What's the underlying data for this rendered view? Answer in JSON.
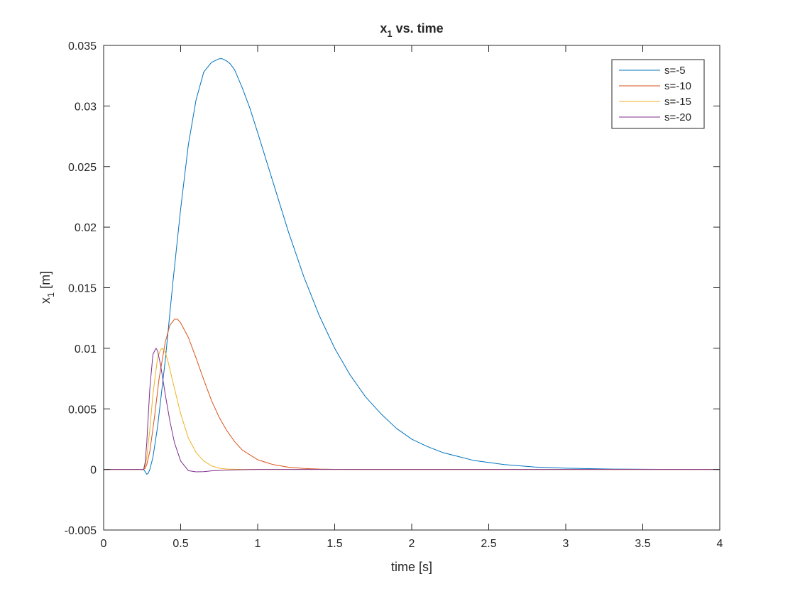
{
  "chart_data": {
    "type": "line",
    "title": "x",
    "title_subscript": "1",
    "title_suffix": " vs. time",
    "xlabel": "time [s]",
    "ylabel": "x",
    "ylabel_subscript": "1",
    "ylabel_suffix": " [m]",
    "xlim": [
      0,
      4
    ],
    "ylim": [
      -0.005,
      0.035
    ],
    "xticks": [
      0,
      0.5,
      1,
      1.5,
      2,
      2.5,
      3,
      3.5,
      4
    ],
    "xtick_labels": [
      "0",
      "0.5",
      "1",
      "1.5",
      "2",
      "2.5",
      "3",
      "3.5",
      "4"
    ],
    "yticks": [
      -0.005,
      0,
      0.005,
      0.01,
      0.015,
      0.02,
      0.025,
      0.03,
      0.035
    ],
    "ytick_labels": [
      "-0.005",
      "0",
      "0.005",
      "0.01",
      "0.015",
      "0.02",
      "0.025",
      "0.03",
      "0.035"
    ],
    "grid": false,
    "legend_position": "top-right",
    "series": [
      {
        "name": "s=-5",
        "color": "#0072BD",
        "x": [
          0,
          0.26,
          0.27,
          0.28,
          0.29,
          0.3,
          0.32,
          0.35,
          0.4,
          0.45,
          0.5,
          0.55,
          0.6,
          0.65,
          0.7,
          0.75,
          0.77,
          0.8,
          0.82,
          0.85,
          0.9,
          0.95,
          1.0,
          1.1,
          1.2,
          1.3,
          1.4,
          1.5,
          1.6,
          1.7,
          1.8,
          1.9,
          2.0,
          2.1,
          2.2,
          2.4,
          2.6,
          2.8,
          3.0,
          3.3,
          3.6,
          4.0
        ],
        "y": [
          0,
          0,
          -0.0002,
          -0.0004,
          -0.0003,
          0,
          0.001,
          0.0035,
          0.009,
          0.0155,
          0.0215,
          0.0268,
          0.0305,
          0.0328,
          0.0336,
          0.0339,
          0.0339,
          0.0337,
          0.0335,
          0.033,
          0.0315,
          0.0298,
          0.0278,
          0.0237,
          0.0196,
          0.0159,
          0.0127,
          0.01,
          0.0078,
          0.006,
          0.0046,
          0.0034,
          0.0025,
          0.0019,
          0.0014,
          0.00075,
          0.0004,
          0.0002,
          0.0001,
          3e-05,
          1e-05,
          0
        ]
      },
      {
        "name": "s=-10",
        "color": "#D95319",
        "x": [
          0,
          0.26,
          0.27,
          0.28,
          0.3,
          0.33,
          0.36,
          0.4,
          0.43,
          0.46,
          0.48,
          0.5,
          0.55,
          0.6,
          0.65,
          0.7,
          0.75,
          0.8,
          0.85,
          0.9,
          1.0,
          1.1,
          1.2,
          1.3,
          1.4,
          1.5,
          1.7,
          2.0,
          4.0
        ],
        "y": [
          0,
          0,
          0.0001,
          0.0004,
          0.0015,
          0.0043,
          0.0075,
          0.0105,
          0.0119,
          0.0124,
          0.0124,
          0.0121,
          0.0109,
          0.0092,
          0.0074,
          0.0057,
          0.0043,
          0.0032,
          0.0023,
          0.0016,
          0.0008,
          0.0004,
          0.00018,
          8e-05,
          3e-05,
          1e-05,
          0,
          0,
          0
        ]
      },
      {
        "name": "s=-15",
        "color": "#EDB120",
        "x": [
          0,
          0.26,
          0.27,
          0.28,
          0.3,
          0.32,
          0.35,
          0.37,
          0.38,
          0.4,
          0.42,
          0.45,
          0.5,
          0.55,
          0.6,
          0.65,
          0.7,
          0.75,
          0.8,
          0.9,
          1.0,
          4.0
        ],
        "y": [
          0,
          0,
          0.0003,
          0.001,
          0.0033,
          0.0062,
          0.0092,
          0.0099,
          0.01,
          0.0097,
          0.0088,
          0.0072,
          0.0046,
          0.0026,
          0.0014,
          0.0007,
          0.0003,
          0.0001,
          3e-05,
          0,
          0,
          0
        ]
      },
      {
        "name": "s=-20",
        "color": "#7E2F8E",
        "x": [
          0,
          0.26,
          0.27,
          0.28,
          0.29,
          0.3,
          0.32,
          0.34,
          0.35,
          0.37,
          0.4,
          0.43,
          0.46,
          0.5,
          0.55,
          0.6,
          0.65,
          0.7,
          0.8,
          0.9,
          1.0,
          1.2,
          4.0
        ],
        "y": [
          0,
          0,
          0.0006,
          0.0022,
          0.0045,
          0.0067,
          0.0095,
          0.01,
          0.0098,
          0.0086,
          0.0062,
          0.004,
          0.0022,
          0.0007,
          -0.0001,
          -0.0002,
          -0.00018,
          -0.00012,
          -5e-05,
          -2e-05,
          0,
          0,
          0
        ]
      }
    ]
  }
}
